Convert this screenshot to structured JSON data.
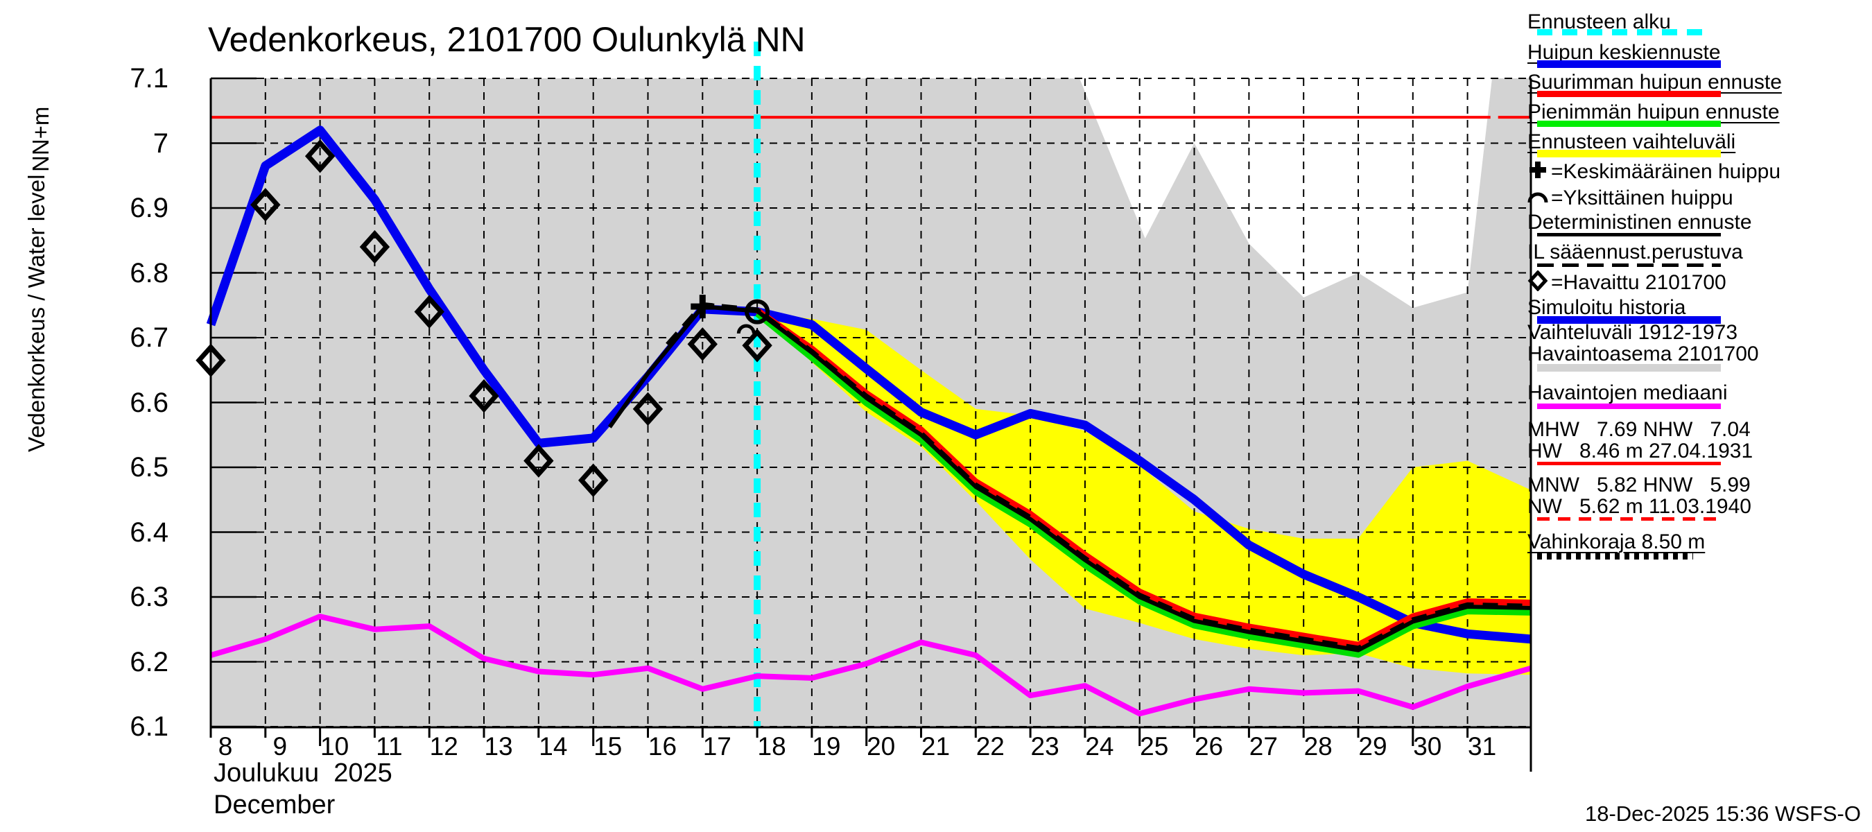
{
  "title": "Vedenkorkeus, 2101700 Oulunkylä NN",
  "y_axis": {
    "unit_label": "NN+m",
    "axis_label": "Vedenkorkeus / Water level",
    "tick_labels": [
      "7.1",
      "7",
      "6.9",
      "6.8",
      "6.7",
      "6.6",
      "6.5",
      "6.4",
      "6.3",
      "6.2",
      "6.1"
    ],
    "tick_values": [
      7.1,
      7.0,
      6.9,
      6.8,
      6.7,
      6.6,
      6.5,
      6.4,
      6.3,
      6.2,
      6.1
    ]
  },
  "x_axis": {
    "month_label_fi": "Joulukuu  2025",
    "month_label_en": "December",
    "tick_labels": [
      "8",
      "9",
      "10",
      "11",
      "12",
      "13",
      "14",
      "15",
      "16",
      "17",
      "18",
      "19",
      "20",
      "21",
      "22",
      "23",
      "24",
      "25",
      "26",
      "27",
      "28",
      "29",
      "30",
      "31"
    ],
    "tick_values": [
      8,
      9,
      10,
      11,
      12,
      13,
      14,
      15,
      16,
      17,
      18,
      19,
      20,
      21,
      22,
      23,
      24,
      25,
      26,
      27,
      28,
      29,
      30,
      31
    ]
  },
  "footer": {
    "timestamp": "18-Dec-2025 15:36 WSFS-O"
  },
  "colors": {
    "history_range": "#d3d3d3",
    "forecast_range": "#ffff00",
    "mean_peak": "#0000f0",
    "max_peak": "#ff0000",
    "min_peak": "#00dd00",
    "deterministic": "#000000",
    "il_forecast": "#000000",
    "median": "#ff00ff",
    "forecast_start": "#00ffff",
    "nhw_line": "#ff0000",
    "grid": "#000000"
  },
  "chart_data": {
    "type": "line",
    "title": "Vedenkorkeus, 2101700 Oulunkylä NN",
    "xlabel": "Joulukuu 2025 / December (day)",
    "ylabel": "Vedenkorkeus / Water level, NN+m",
    "xlim": [
      8,
      32.16
    ],
    "ylim": [
      6.1,
      7.1
    ],
    "grid": true,
    "forecast_start_x": 18,
    "reference_line": {
      "name": "NHW",
      "value": 7.04,
      "segments": [
        [
          8,
          31.42
        ],
        [
          31.56,
          32.16
        ]
      ]
    },
    "areas": [
      {
        "name": "history-range-1912-1973",
        "top": [
          [
            8,
            7.1
          ],
          [
            23.9,
            7.1
          ],
          [
            25.1,
            6.853
          ],
          [
            26,
            7.0
          ],
          [
            27,
            6.845
          ],
          [
            28,
            6.762
          ],
          [
            29,
            6.8
          ],
          [
            30,
            6.746
          ],
          [
            31,
            6.77
          ],
          [
            31.45,
            7.1
          ],
          [
            32.16,
            7.1
          ]
        ],
        "bottom_value": 6.1
      },
      {
        "name": "forecast-range",
        "top": [
          [
            18,
            6.74
          ],
          [
            19,
            6.729
          ],
          [
            20,
            6.712
          ],
          [
            21,
            6.65
          ],
          [
            22,
            6.59
          ],
          [
            23,
            6.58
          ],
          [
            24,
            6.556
          ],
          [
            25,
            6.503
          ],
          [
            26,
            6.432
          ],
          [
            27,
            6.405
          ],
          [
            28,
            6.39
          ],
          [
            29,
            6.39
          ],
          [
            30,
            6.5
          ],
          [
            31,
            6.51
          ],
          [
            32.16,
            6.465
          ]
        ],
        "bottom": [
          [
            18,
            6.74
          ],
          [
            19,
            6.662
          ],
          [
            20,
            6.585
          ],
          [
            21,
            6.532
          ],
          [
            22,
            6.448
          ],
          [
            23,
            6.358
          ],
          [
            24,
            6.282
          ],
          [
            25,
            6.26
          ],
          [
            26,
            6.235
          ],
          [
            27,
            6.22
          ],
          [
            28,
            6.21
          ],
          [
            29,
            6.213
          ],
          [
            30,
            6.19
          ],
          [
            31,
            6.182
          ],
          [
            32.16,
            6.18
          ]
        ]
      }
    ],
    "series": [
      {
        "name": "median-of-observations",
        "color": "#ff00ff",
        "width": 8,
        "points": [
          [
            8,
            6.21
          ],
          [
            9,
            6.235
          ],
          [
            10,
            6.27
          ],
          [
            11,
            6.25
          ],
          [
            12,
            6.255
          ],
          [
            13,
            6.205
          ],
          [
            14,
            6.185
          ],
          [
            15,
            6.18
          ],
          [
            16,
            6.19
          ],
          [
            17,
            6.158
          ],
          [
            18,
            6.178
          ],
          [
            19,
            6.175
          ],
          [
            20,
            6.197
          ],
          [
            21,
            6.23
          ],
          [
            22,
            6.21
          ],
          [
            23,
            6.148
          ],
          [
            24,
            6.163
          ],
          [
            25,
            6.12
          ],
          [
            26,
            6.142
          ],
          [
            27,
            6.158
          ],
          [
            28,
            6.152
          ],
          [
            29,
            6.155
          ],
          [
            30,
            6.13
          ],
          [
            31,
            6.162
          ],
          [
            32.16,
            6.19
          ]
        ]
      },
      {
        "name": "simulated-history-and-mean-peak-forecast",
        "color": "#0000f0",
        "width": 13,
        "points": [
          [
            8,
            6.72
          ],
          [
            9,
            6.965
          ],
          [
            10,
            7.02
          ],
          [
            11,
            6.913
          ],
          [
            12,
            6.775
          ],
          [
            13,
            6.65
          ],
          [
            14,
            6.537
          ],
          [
            15,
            6.545
          ],
          [
            16,
            6.64
          ],
          [
            17,
            6.744
          ],
          [
            18,
            6.74
          ],
          [
            19,
            6.72
          ],
          [
            20,
            6.652
          ],
          [
            21,
            6.585
          ],
          [
            22,
            6.55
          ],
          [
            23,
            6.583
          ],
          [
            24,
            6.565
          ],
          [
            25,
            6.51
          ],
          [
            26,
            6.45
          ],
          [
            27,
            6.38
          ],
          [
            28,
            6.335
          ],
          [
            29,
            6.3
          ],
          [
            30,
            6.26
          ],
          [
            31,
            6.243
          ],
          [
            32.16,
            6.235
          ]
        ]
      },
      {
        "name": "max-peak-forecast",
        "color": "#ff0000",
        "width": 9,
        "points": [
          [
            18,
            6.742
          ],
          [
            19,
            6.683
          ],
          [
            20,
            6.614
          ],
          [
            21,
            6.558
          ],
          [
            22,
            6.478
          ],
          [
            23,
            6.428
          ],
          [
            24,
            6.365
          ],
          [
            25,
            6.308
          ],
          [
            26,
            6.271
          ],
          [
            27,
            6.254
          ],
          [
            28,
            6.24
          ],
          [
            29,
            6.226
          ],
          [
            30,
            6.27
          ],
          [
            31,
            6.293
          ],
          [
            32.16,
            6.291
          ]
        ]
      },
      {
        "name": "min-peak-forecast",
        "color": "#00dd00",
        "width": 9,
        "points": [
          [
            18,
            6.737
          ],
          [
            19,
            6.669
          ],
          [
            20,
            6.599
          ],
          [
            21,
            6.542
          ],
          [
            22,
            6.462
          ],
          [
            23,
            6.412
          ],
          [
            24,
            6.349
          ],
          [
            25,
            6.293
          ],
          [
            26,
            6.256
          ],
          [
            27,
            6.239
          ],
          [
            28,
            6.225
          ],
          [
            29,
            6.211
          ],
          [
            30,
            6.255
          ],
          [
            31,
            6.278
          ],
          [
            32.16,
            6.276
          ]
        ]
      },
      {
        "name": "deterministic-forecast",
        "color": "#000000",
        "width": 6,
        "points": [
          [
            15.3,
            6.562
          ],
          [
            16,
            6.645
          ],
          [
            17,
            6.748
          ],
          [
            18,
            6.741
          ],
          [
            19,
            6.677
          ],
          [
            20,
            6.607
          ],
          [
            21,
            6.55
          ],
          [
            22,
            6.47
          ],
          [
            23,
            6.42
          ],
          [
            24,
            6.357
          ],
          [
            25,
            6.3
          ],
          [
            26,
            6.263
          ],
          [
            27,
            6.246
          ],
          [
            28,
            6.232
          ],
          [
            29,
            6.218
          ],
          [
            30,
            6.262
          ],
          [
            31,
            6.285
          ],
          [
            32.16,
            6.283
          ]
        ]
      },
      {
        "name": "il-weather-based-forecast",
        "color": "#000000",
        "width": 5,
        "dash": "22 13",
        "points": [
          [
            16.35,
            6.69
          ],
          [
            17,
            6.752
          ],
          [
            18,
            6.744
          ],
          [
            19,
            6.68
          ],
          [
            20,
            6.611
          ],
          [
            21,
            6.554
          ],
          [
            22,
            6.474
          ],
          [
            23,
            6.424
          ],
          [
            24,
            6.361
          ],
          [
            25,
            6.304
          ],
          [
            26,
            6.267
          ],
          [
            27,
            6.25
          ],
          [
            28,
            6.236
          ],
          [
            29,
            6.222
          ],
          [
            30,
            6.266
          ],
          [
            31,
            6.289
          ],
          [
            32.16,
            6.287
          ]
        ]
      }
    ],
    "markers": {
      "observed": {
        "name": "observed-2101700",
        "points": [
          [
            8,
            6.665
          ],
          [
            9,
            6.905
          ],
          [
            10,
            6.98
          ],
          [
            11,
            6.84
          ],
          [
            12,
            6.74
          ],
          [
            13,
            6.61
          ],
          [
            14,
            6.51
          ],
          [
            15,
            6.48
          ],
          [
            16,
            6.59
          ],
          [
            17,
            6.69
          ],
          [
            18,
            6.688
          ]
        ]
      },
      "average_peak_plus": [
        17,
        6.748
      ],
      "single_peak_ring": [
        18,
        6.74
      ],
      "single_peak_arc": [
        17.8,
        6.716
      ]
    }
  },
  "legend": {
    "items": [
      {
        "id": "forecast-start",
        "lines": [
          "Ennusteen alku"
        ],
        "sample": "cyan-dashed",
        "underline": false
      },
      {
        "id": "mean-peak-forecast",
        "lines": [
          "Huipun keskiennuste"
        ],
        "sample": "blue-solid",
        "underline": true
      },
      {
        "id": "max-peak-forecast",
        "lines": [
          "Suurimman huipun ennuste"
        ],
        "sample": "red-solid",
        "underline": true
      },
      {
        "id": "min-peak-forecast",
        "lines": [
          "Pienimmän huipun ennuste"
        ],
        "sample": "green-solid",
        "underline": true
      },
      {
        "id": "forecast-range",
        "lines": [
          "Ennusteen vaihteluväli"
        ],
        "sample": "yellow-solid",
        "underline": true
      },
      {
        "id": "average-peak",
        "lines": [
          "=Keskimääräinen huippu"
        ],
        "glyph": "plus",
        "underline": false
      },
      {
        "id": "single-peak",
        "lines": [
          "=Yksittäinen huippu"
        ],
        "glyph": "arc",
        "underline": false
      },
      {
        "id": "deterministic-forecast",
        "lines": [
          "Deterministinen ennuste"
        ],
        "sample": "black-solid",
        "underline": false
      },
      {
        "id": "il-weather-forecast",
        "lines": [
          "IL sääennust.perustuva"
        ],
        "sample": "black-dashed",
        "underline": false
      },
      {
        "id": "observed",
        "lines": [
          "=Havaittu 2101700"
        ],
        "glyph": "diamond",
        "underline": false
      },
      {
        "id": "simulated-history",
        "lines": [
          "Simuloitu historia"
        ],
        "sample": "blue-solid",
        "underline": false
      },
      {
        "id": "history-range",
        "lines": [
          "Vaihteluväli 1912-1973",
          "Havaintoasema 2101700"
        ],
        "sample": "gray-solid",
        "underline": false
      },
      {
        "id": "median-observations",
        "lines": [
          "Havaintojen mediaani"
        ],
        "sample": "magenta-solid",
        "underline": false
      },
      {
        "id": "high-water-stats",
        "lines": [
          "MHW   7.69 NHW   7.04",
          "HW   8.46 m 27.04.1931"
        ],
        "sample": "red-thin",
        "underline": false
      },
      {
        "id": "low-water-stats",
        "lines": [
          "MNW   5.82 HNW   5.99",
          "NW   5.62 m 11.03.1940"
        ],
        "sample": "red-thin-dashed",
        "underline": false
      },
      {
        "id": "damage-limit",
        "lines": [
          "Vahinkoraja 8.50 m"
        ],
        "sample": "black-dotted",
        "underline": true
      }
    ]
  }
}
